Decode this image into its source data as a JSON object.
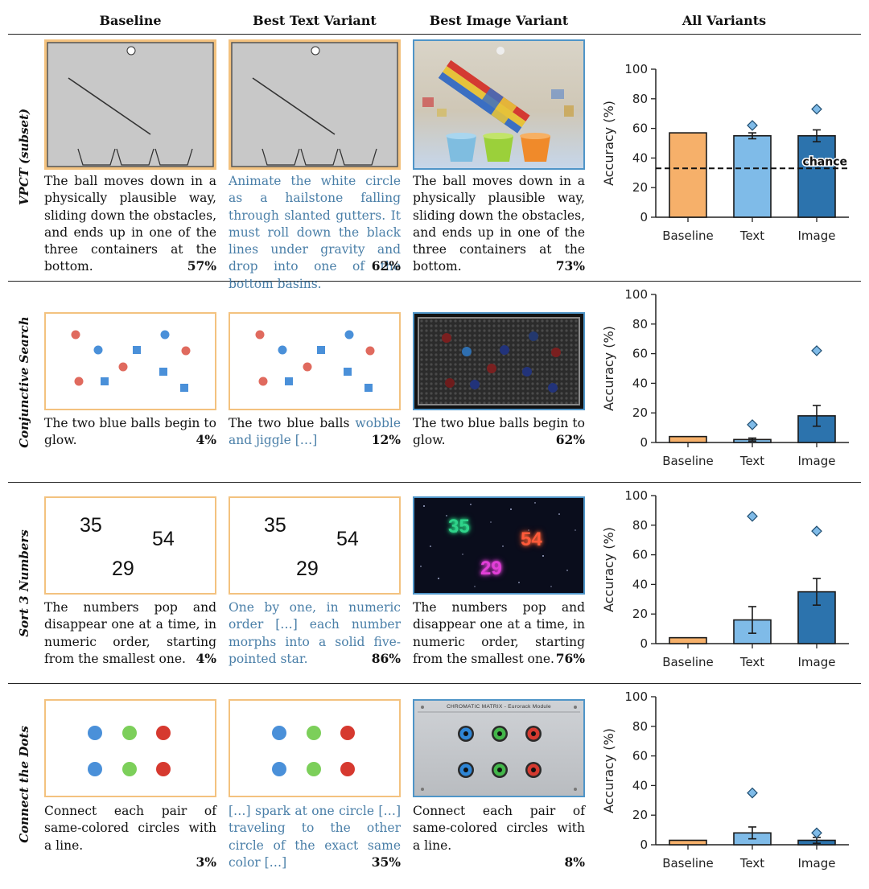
{
  "headers": [
    "Baseline",
    "Best Text Variant",
    "Best Image Variant",
    "All Variants"
  ],
  "rows": [
    {
      "label": "VPCT (subset)",
      "captions": [
        {
          "text": "The ball moves down in a physically plausible way, sliding down the obstacles, and ends up in one of the three containers at the bottom.",
          "pct": "57%"
        },
        {
          "text": "Animate the white circle as a hailstone falling through slanted gutters. It must roll down the black lines under gravity and drop into one of the bottom basins.",
          "pct": "62%"
        },
        {
          "text": "The ball moves down in a physically plausible way, sliding down the obstacles, and ends up in one of the three containers at the bottom.",
          "pct": "73%"
        }
      ]
    },
    {
      "label": "Conjunctive Search",
      "captions": [
        {
          "text": "The two blue balls begin to glow.",
          "pct": "4%"
        },
        {
          "text_plain": "The two blue balls ",
          "text_blue": "wobble and jiggle […]",
          "pct": "12%"
        },
        {
          "text": "The two blue balls begin to glow.",
          "pct": "62%"
        }
      ],
      "numbers_hidden": []
    },
    {
      "label": "Sort 3 Numbers",
      "numbers": [
        "35",
        "54",
        "29"
      ],
      "captions": [
        {
          "text": "The numbers pop and disappear one at a time, in numeric order, starting from the smallest one.",
          "pct": "4%"
        },
        {
          "text": "One by one, in numeric order […] each number morphs into a solid five-pointed star.",
          "pct": "86%"
        },
        {
          "text": "The numbers pop and disappear one at a time, in numeric order, starting from the smallest one.",
          "pct": "76%"
        }
      ]
    },
    {
      "label": "Connect the Dots",
      "module_title": "CHROMATIC MATRIX - Eurorack Module",
      "captions": [
        {
          "text": "Connect each pair of same-colored circles with a line.",
          "pct": "3%"
        },
        {
          "text": "[…] spark at one circle […] traveling to the other circle of the exact same color […]",
          "pct": "35%"
        },
        {
          "text": "Connect each pair of same-colored circles with a line.",
          "pct": "8%"
        }
      ]
    }
  ],
  "chart_data": [
    {
      "type": "bar",
      "title": "VPCT (subset)",
      "ylabel": "Accuracy (%)",
      "ylim": [
        0,
        100
      ],
      "yticks": [
        0,
        20,
        40,
        60,
        80,
        100
      ],
      "categories": [
        "Baseline",
        "Text",
        "Image"
      ],
      "values": [
        57,
        55,
        55
      ],
      "err": [
        0,
        2,
        4
      ],
      "best": [
        null,
        62,
        73
      ],
      "chance": 33,
      "chance_label": "chance"
    },
    {
      "type": "bar",
      "title": "Conjunctive Search",
      "ylabel": "Accuracy (%)",
      "ylim": [
        0,
        100
      ],
      "yticks": [
        0,
        20,
        40,
        60,
        80,
        100
      ],
      "categories": [
        "Baseline",
        "Text",
        "Image"
      ],
      "values": [
        4,
        2,
        18
      ],
      "err": [
        0,
        1,
        7
      ],
      "best": [
        null,
        12,
        62
      ]
    },
    {
      "type": "bar",
      "title": "Sort 3 Numbers",
      "ylabel": "Accuracy (%)",
      "ylim": [
        0,
        100
      ],
      "yticks": [
        0,
        20,
        40,
        60,
        80,
        100
      ],
      "categories": [
        "Baseline",
        "Text",
        "Image"
      ],
      "values": [
        4,
        16,
        35
      ],
      "err": [
        0,
        9,
        9
      ],
      "best": [
        null,
        86,
        76
      ]
    },
    {
      "type": "bar",
      "title": "Connect the Dots",
      "ylabel": "Accuracy (%)",
      "ylim": [
        0,
        100
      ],
      "yticks": [
        0,
        20,
        40,
        60,
        80,
        100
      ],
      "categories": [
        "Baseline",
        "Text",
        "Image"
      ],
      "values": [
        3,
        8,
        3
      ],
      "err": [
        0,
        4,
        2
      ],
      "best": [
        null,
        35,
        8
      ]
    }
  ],
  "colors": {
    "baseline": "#f6b06a",
    "text": "#7fbbe8",
    "image": "#2c73ad",
    "frame": "#f3c27f",
    "caption_blue": "#4a7fa8"
  }
}
